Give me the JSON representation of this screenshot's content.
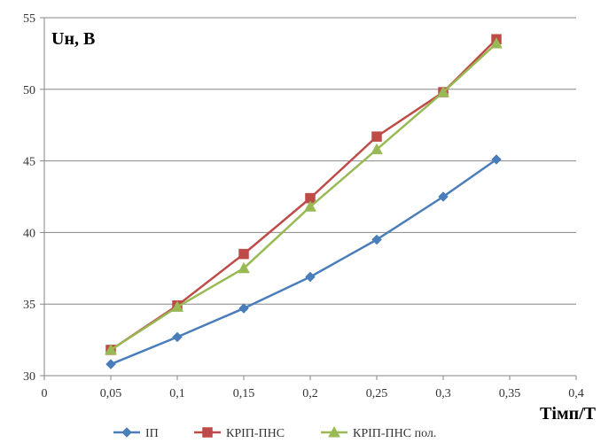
{
  "chart_data": {
    "type": "line",
    "ylabel": "Uн, В",
    "xlabel": "Тімп/Т",
    "xlim": [
      0,
      0.4
    ],
    "ylim": [
      30,
      55
    ],
    "x_ticks": [
      "0",
      "0,05",
      "0,1",
      "0,15",
      "0,2",
      "0,25",
      "0,3",
      "0,35",
      "0,4"
    ],
    "x_tick_values": [
      0,
      0.05,
      0.1,
      0.15,
      0.2,
      0.25,
      0.3,
      0.35,
      0.4
    ],
    "y_ticks": [
      "30",
      "35",
      "40",
      "45",
      "50",
      "55"
    ],
    "y_tick_values": [
      30,
      35,
      40,
      45,
      50,
      55
    ],
    "grid": "horizontal",
    "legend_position": "bottom",
    "series": [
      {
        "name": "ІП",
        "color": "#4a7ebb",
        "marker": "diamond",
        "x": [
          0.05,
          0.1,
          0.15,
          0.2,
          0.25,
          0.3,
          0.34
        ],
        "y": [
          30.8,
          32.7,
          34.7,
          36.9,
          39.5,
          42.5,
          45.1
        ]
      },
      {
        "name": "КРІП-ПНС",
        "color": "#be4b48",
        "marker": "square",
        "x": [
          0.05,
          0.1,
          0.15,
          0.2,
          0.25,
          0.3,
          0.34
        ],
        "y": [
          31.8,
          34.9,
          38.5,
          42.4,
          46.7,
          49.8,
          53.5
        ]
      },
      {
        "name": "КРІП-ПНС пол.",
        "color": "#98b954",
        "marker": "triangle",
        "x": [
          0.05,
          0.1,
          0.15,
          0.2,
          0.25,
          0.3,
          0.34
        ],
        "y": [
          31.8,
          34.8,
          37.5,
          41.8,
          45.8,
          49.8,
          53.2
        ]
      }
    ]
  }
}
